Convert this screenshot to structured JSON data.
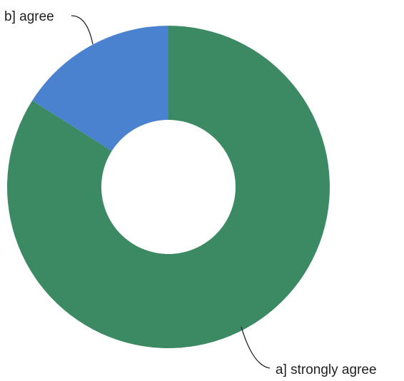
{
  "chart_data": {
    "type": "pie",
    "variant": "donut",
    "title": "",
    "categories": [
      "a] strongly agree",
      "b] agree"
    ],
    "values": [
      84,
      16
    ],
    "colors": [
      "#3c8a64",
      "#4a82cf"
    ],
    "legend": "none",
    "labels_outside": true
  }
}
